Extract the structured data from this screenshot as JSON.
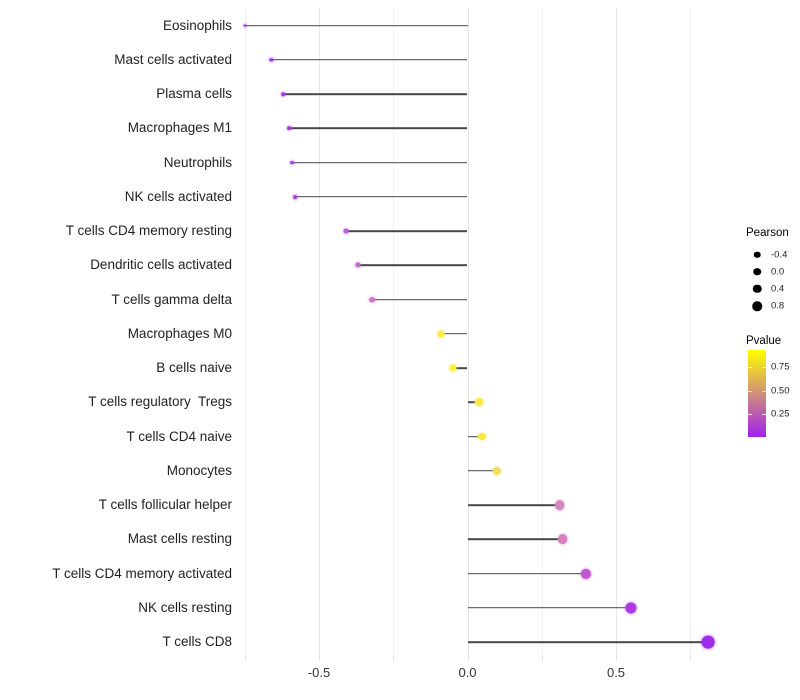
{
  "background": "#FFFFFF",
  "chart_data": {
    "type": "scatter",
    "subtype": "horizontal-lollipop",
    "title": "",
    "xlabel": "",
    "ylabel": "",
    "grid": "vertical light gray gridlines on white background",
    "categories": [
      "Eosinophils",
      "Mast cells activated",
      "Plasma cells",
      "Macrophages M1",
      "Neutrophils",
      "NK cells activated",
      "T cells CD4 memory resting",
      "Dendritic cells activated",
      "T cells gamma delta",
      "Macrophages M0",
      "B cells naive",
      "T cells regulatory  Tregs",
      "T cells CD4 naive",
      "Monocytes",
      "T cells follicular helper",
      "Mast cells resting",
      "T cells CD4 memory activated",
      "NK cells resting",
      "T cells CD8"
    ],
    "series": [
      {
        "name": "Pearson correlation",
        "values": [
          -0.75,
          -0.66,
          -0.62,
          -0.6,
          -0.59,
          -0.58,
          -0.41,
          -0.37,
          -0.32,
          -0.09,
          -0.05,
          0.04,
          0.05,
          0.1,
          0.31,
          0.32,
          0.4,
          0.55,
          0.81
        ]
      }
    ],
    "point_colors": [
      "#9F2BE5",
      "#A334E4",
      "#A63AE2",
      "#A73CE1",
      "#A83EE0",
      "#A840E0",
      "#B75FD5",
      "#C169CD",
      "#CA73C6",
      "#F9EC41",
      "#FAEE3E",
      "#F9EA43",
      "#F8E847",
      "#F2DC5B",
      "#D685BE",
      "#D480C1",
      "#C354D3",
      "#AC3BE3",
      "#9D2BE9"
    ],
    "stem_color": "#474747",
    "xlim": [
      -0.79,
      0.88
    ],
    "x_ticks": [
      {
        "label": "-0.5",
        "value": -0.5
      },
      {
        "label": "0.0",
        "value": 0.0
      },
      {
        "label": "0.5",
        "value": 0.5
      }
    ],
    "x_gridlines_major": [
      -0.5,
      0.0,
      0.5
    ],
    "x_gridlines_minor": [
      -0.75,
      -0.25,
      0.25,
      0.75
    ],
    "size_legend": {
      "title": "Pearson",
      "items": [
        {
          "label": "-0.4",
          "value": -0.4,
          "diameter": 6.5
        },
        {
          "label": "0.0",
          "value": 0.0,
          "diameter": 7.5
        },
        {
          "label": "0.4",
          "value": 0.4,
          "diameter": 8.5
        },
        {
          "label": "0.8",
          "value": 0.8,
          "diameter": 9.5
        }
      ],
      "dot_color": "#000000"
    },
    "color_legend": {
      "title": "Pvalue",
      "gradient_top_color": "#FFFF00",
      "gradient_bottom_color": "#A020F0",
      "ticks": [
        {
          "label": "0.75",
          "frac_from_top": 0.195
        },
        {
          "label": "0.50",
          "frac_from_top": 0.47
        },
        {
          "label": "0.25",
          "frac_from_top": 0.735
        }
      ]
    }
  }
}
